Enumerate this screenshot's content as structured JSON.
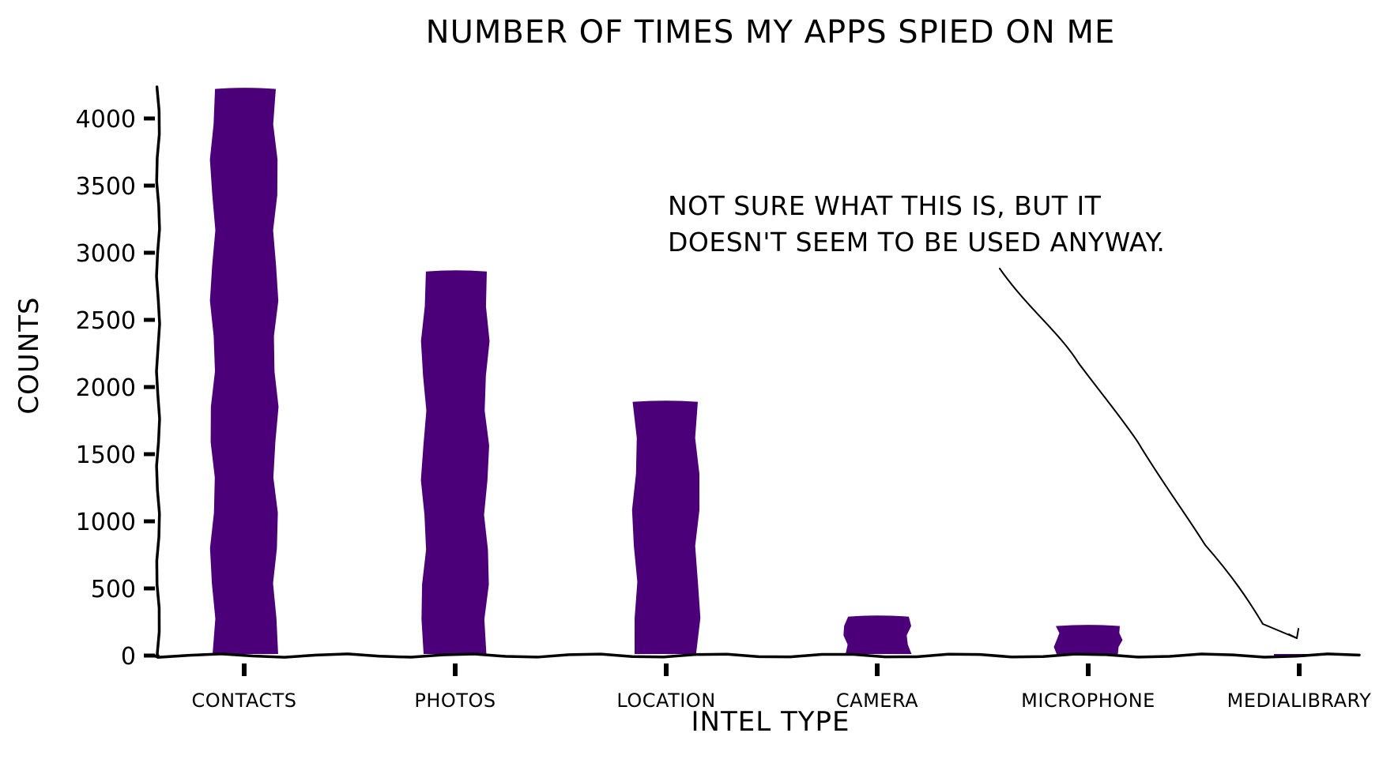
{
  "chart_data": {
    "type": "bar",
    "title": "NUMBER OF TIMES MY APPS SPIED ON ME",
    "xlabel": "INTEL TYPE",
    "ylabel": "COUNTS",
    "categories": [
      "CONTACTS",
      "PHOTOS",
      "LOCATION",
      "CAMERA",
      "MICROPHONE",
      "MEDIALIBRARY"
    ],
    "values": [
      4220,
      2860,
      1890,
      290,
      220,
      5
    ],
    "ylim": [
      0,
      4400
    ],
    "yticks": [
      0,
      500,
      1000,
      1500,
      2000,
      2500,
      3000,
      3500,
      4000
    ],
    "ytick_labels": [
      "0",
      "500",
      "1000",
      "1500",
      "2000",
      "2500",
      "3000",
      "3500",
      "4000"
    ],
    "grid": false,
    "colors": {
      "bar": "#4b0079",
      "axis": "#000000",
      "background": "#ffffff"
    },
    "annotation": {
      "lines": [
        "NOT SURE WHAT THIS IS, BUT IT",
        "DOESN'T SEEM TO BE USED ANYWAY."
      ],
      "target_category": "MEDIALIBRARY"
    }
  }
}
